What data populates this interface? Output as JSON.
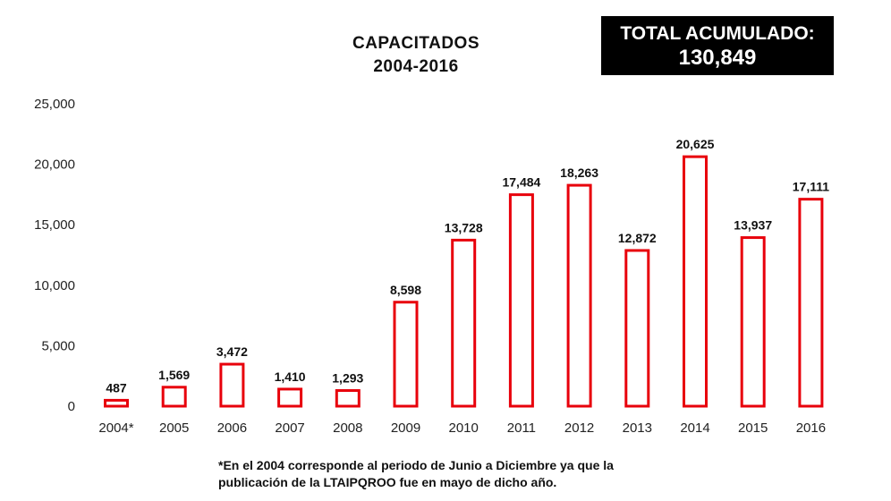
{
  "header": {
    "title_line1": "CAPACITADOS",
    "title_line2": "2004-2016",
    "total_label": "TOTAL ACUMULADO:",
    "total_value": "130,849"
  },
  "footnote": {
    "line1": "*En el 2004 corresponde al periodo de Junio a Diciembre ya que la",
    "line2": "publicación de la LTAIPQROO fue en mayo de dicho año."
  },
  "chart_data": {
    "type": "bar",
    "title": "CAPACITADOS 2004-2016",
    "categories": [
      "2004*",
      "2005",
      "2006",
      "2007",
      "2008",
      "2009",
      "2010",
      "2011",
      "2012",
      "2013",
      "2014",
      "2015",
      "2016"
    ],
    "values": [
      487,
      1569,
      3472,
      1410,
      1293,
      8598,
      13728,
      17484,
      18263,
      12872,
      20625,
      13937,
      17111
    ],
    "value_labels": [
      "487",
      "1,569",
      "3,472",
      "1,410",
      "1,293",
      "8,598",
      "13,728",
      "17,484",
      "18,263",
      "12,872",
      "20,625",
      "13,937",
      "17,111"
    ],
    "yticks": [
      0,
      5000,
      10000,
      15000,
      20000,
      25000
    ],
    "ytick_labels": [
      "0",
      "5,000",
      "10,000",
      "15,000",
      "20,000",
      "25,000"
    ],
    "ylim": [
      0,
      25000
    ],
    "xlabel": "",
    "ylabel": "",
    "grid": false,
    "bar_style": "outline",
    "bar_color": "#e8000b"
  }
}
